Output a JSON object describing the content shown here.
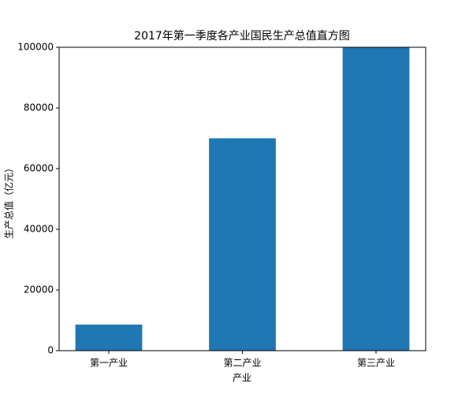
{
  "chart_data": {
    "type": "bar",
    "title": "2017年第一季度各产业国民生产总值直方图",
    "x_label": "产业",
    "y_label": "生产总值（亿元）",
    "categories": [
      "第一产业",
      "第二产业",
      "第三产业"
    ],
    "values": [
      8600,
      70000,
      100000
    ],
    "color": "#1f77b4",
    "ylim": [
      0,
      100000
    ],
    "yticks": [
      0,
      20000,
      40000,
      60000,
      80000,
      100000
    ],
    "grid": false
  }
}
